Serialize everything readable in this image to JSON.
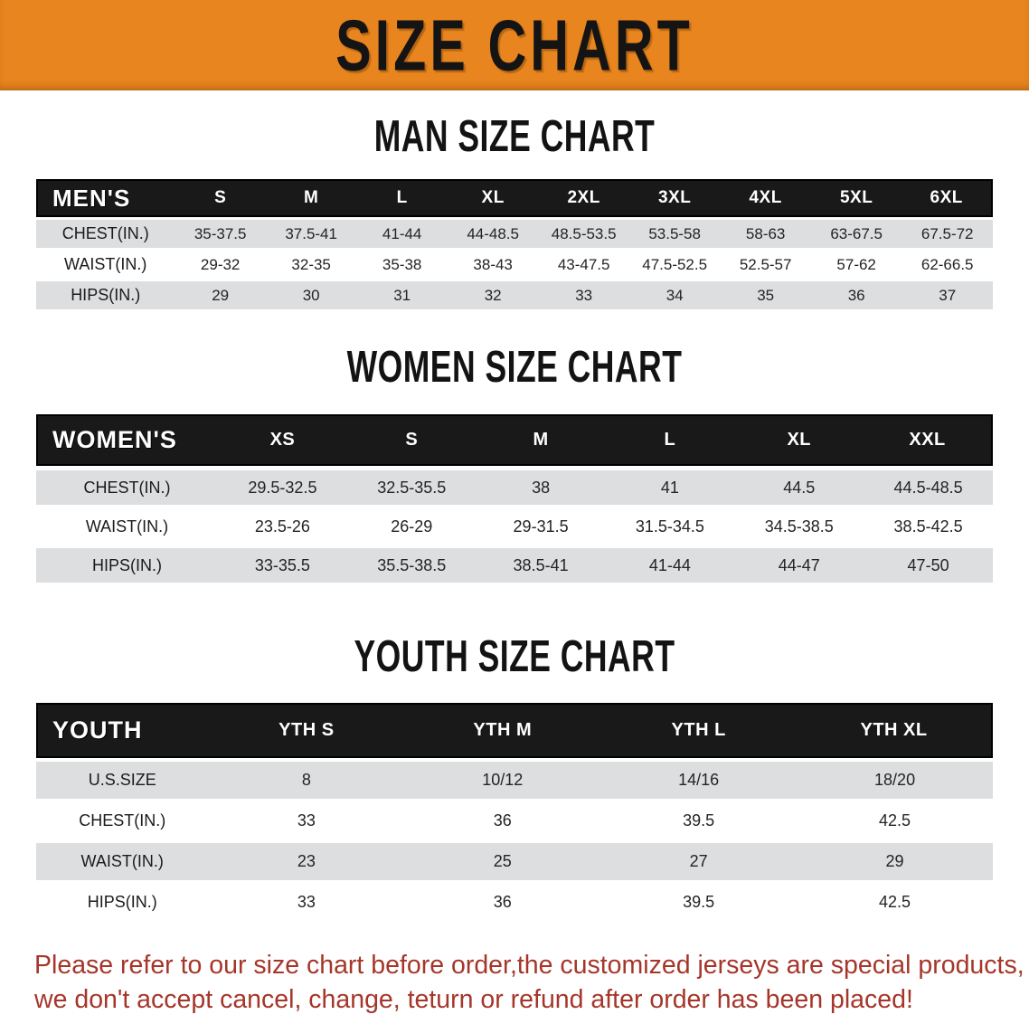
{
  "banner": {
    "title": "SIZE CHART"
  },
  "sections": [
    {
      "title": "MAN SIZE CHART",
      "table": {
        "label": "MEN'S",
        "columns": [
          "S",
          "M",
          "L",
          "XL",
          "2XL",
          "3XL",
          "4XL",
          "5XL",
          "6XL"
        ],
        "rows": [
          {
            "label": "CHEST(IN.)",
            "values": [
              "35-37.5",
              "37.5-41",
              "41-44",
              "44-48.5",
              "48.5-53.5",
              "53.5-58",
              "58-63",
              "63-67.5",
              "67.5-72"
            ]
          },
          {
            "label": "WAIST(IN.)",
            "values": [
              "29-32",
              "32-35",
              "35-38",
              "38-43",
              "43-47.5",
              "47.5-52.5",
              "52.5-57",
              "57-62",
              "62-66.5"
            ]
          },
          {
            "label": "HIPS(IN.)",
            "values": [
              "29",
              "30",
              "31",
              "32",
              "33",
              "34",
              "35",
              "36",
              "37"
            ]
          }
        ]
      }
    },
    {
      "title": "WOMEN SIZE CHART",
      "table": {
        "label": "WOMEN'S",
        "columns": [
          "XS",
          "S",
          "M",
          "L",
          "XL",
          "XXL"
        ],
        "rows": [
          {
            "label": "CHEST(IN.)",
            "values": [
              "29.5-32.5",
              "32.5-35.5",
              "38",
              "41",
              "44.5",
              "44.5-48.5"
            ]
          },
          {
            "label": "WAIST(IN.)",
            "values": [
              "23.5-26",
              "26-29",
              "29-31.5",
              "31.5-34.5",
              "34.5-38.5",
              "38.5-42.5"
            ]
          },
          {
            "label": "HIPS(IN.)",
            "values": [
              "33-35.5",
              "35.5-38.5",
              "38.5-41",
              "41-44",
              "44-47",
              "47-50"
            ]
          }
        ]
      }
    },
    {
      "title": "YOUTH SIZE CHART",
      "table": {
        "label": "YOUTH",
        "columns": [
          "YTH S",
          "YTH M",
          "YTH L",
          "YTH XL"
        ],
        "rows": [
          {
            "label": "U.S.SIZE",
            "values": [
              "8",
              "10/12",
              "14/16",
              "18/20"
            ]
          },
          {
            "label": "CHEST(IN.)",
            "values": [
              "33",
              "36",
              "39.5",
              "42.5"
            ]
          },
          {
            "label": "WAIST(IN.)",
            "values": [
              "23",
              "25",
              "27",
              "29"
            ]
          },
          {
            "label": "HIPS(IN.)",
            "values": [
              "33",
              "36",
              "39.5",
              "42.5"
            ]
          }
        ]
      }
    }
  ],
  "disclaimer": {
    "line1": "Please refer to our size chart before order,the customized jerseys are special products,",
    "line2": "we don't accept cancel, change, teturn or refund after order has been placed!"
  },
  "colors": {
    "banner_bg": "#E8851E",
    "table_header_bg": "#191919",
    "row_gray": "#dcdedf",
    "disclaimer_red": "#A6362A"
  }
}
